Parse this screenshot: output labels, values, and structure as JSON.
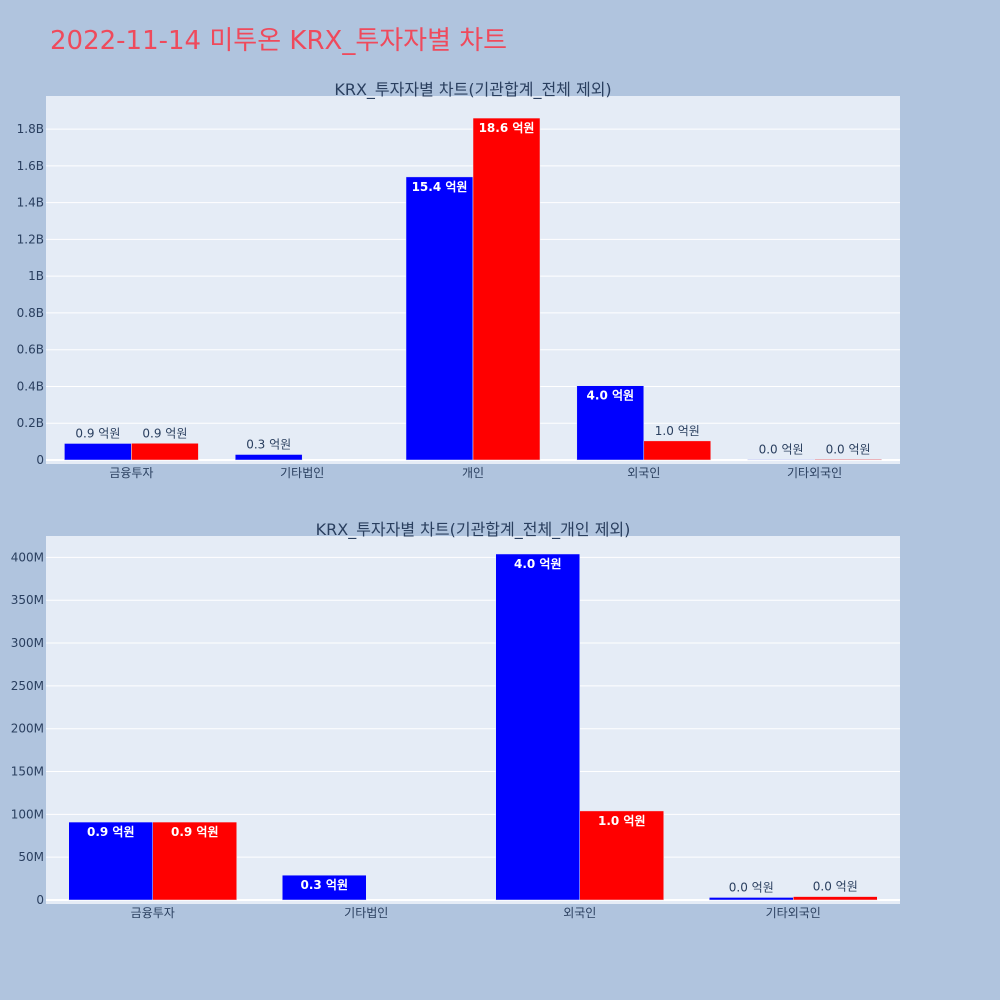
{
  "page": {
    "title": "2022-11-14 미투온 KRX_투자자별 차트"
  },
  "colors": {
    "background": "#b0c4de",
    "plot": "#e5ecf6",
    "title": "#ef4a5c",
    "buy": "#0000ff",
    "sell": "#ff0000"
  },
  "chart_data": [
    {
      "type": "bar",
      "title": "KRX_투자자별 차트(기관합계_전체 제외)",
      "categories": [
        "금융투자",
        "기타법인",
        "개인",
        "외국인",
        "기타외국인"
      ],
      "ylim": [
        0,
        1980000000
      ],
      "yticks": [
        0,
        200000000,
        400000000,
        600000000,
        800000000,
        1000000000,
        1200000000,
        1400000000,
        1600000000,
        1800000000
      ],
      "ytick_labels": [
        "0",
        "0.2B",
        "0.4B",
        "0.6B",
        "0.8B",
        "1B",
        "1.2B",
        "1.4B",
        "1.6B",
        "1.8B"
      ],
      "grid": true,
      "series": [
        {
          "color": "#0000ff",
          "values": [
            90000000,
            30000000,
            1540000000,
            404000000,
            3000000
          ],
          "labels": [
            "0.9 억원",
            "0.3 억원",
            "15.4 억원",
            "4.0 억원",
            "0.0 억원"
          ]
        },
        {
          "color": "#ff0000",
          "values": [
            91000000,
            0,
            1860000000,
            104000000,
            4000000
          ],
          "labels": [
            "0.9 억원",
            "",
            "18.6 억원",
            "1.0 억원",
            "0.0 억원"
          ]
        }
      ]
    },
    {
      "type": "bar",
      "title": "KRX_투자자별 차트(기관합계_전체_개인 제외)",
      "categories": [
        "금융투자",
        "기타법인",
        "외국인",
        "기타외국인"
      ],
      "ylim": [
        0,
        425000000
      ],
      "yticks": [
        0,
        50000000,
        100000000,
        150000000,
        200000000,
        250000000,
        300000000,
        350000000,
        400000000
      ],
      "ytick_labels": [
        "0",
        "50M",
        "100M",
        "150M",
        "200M",
        "250M",
        "300M",
        "350M",
        "400M"
      ],
      "grid": true,
      "series": [
        {
          "color": "#0000ff",
          "values": [
            91000000,
            29000000,
            404000000,
            3000000
          ],
          "labels": [
            "0.9 억원",
            "0.3 억원",
            "4.0 억원",
            "0.0 억원"
          ]
        },
        {
          "color": "#ff0000",
          "values": [
            91000000,
            0,
            104000000,
            4000000
          ],
          "labels": [
            "0.9 억원",
            "",
            "1.0 억원",
            "0.0 억원"
          ]
        }
      ]
    }
  ]
}
